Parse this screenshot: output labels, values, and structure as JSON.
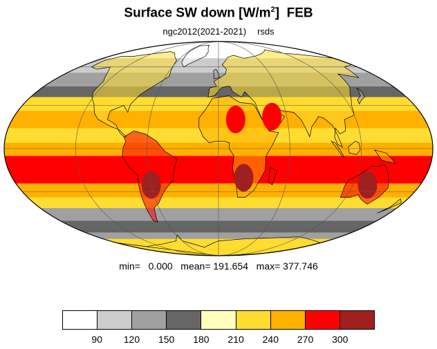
{
  "title": {
    "main": "Surface SW down [W/m",
    "sup": "2",
    "close": "]",
    "month": "FEB"
  },
  "subtitle": {
    "run": "ngc2012(2021-2021)",
    "variable": "rsds"
  },
  "stats": {
    "text": "min=   0.000   mean= 191.654   max= 377.746"
  },
  "colorbar": {
    "colors": [
      "#ffffff",
      "#cccccc",
      "#a0a0a0",
      "#666666",
      "#ffffc0",
      "#ffdc30",
      "#ffb000",
      "#ff0000",
      "#a02020"
    ],
    "labels": [
      "90",
      "120",
      "150",
      "180",
      "210",
      "240",
      "270",
      "300"
    ]
  },
  "map": {
    "projection": "mollweide",
    "variable_units": "W/m2",
    "ocean_bands": [
      {
        "lat_from": 90,
        "lat_to": 68,
        "value_color": "#ffffff"
      },
      {
        "lat_from": 68,
        "lat_to": 55,
        "value_color": "#cccccc"
      },
      {
        "lat_from": 55,
        "lat_to": 44,
        "value_color": "#a0a0a0"
      },
      {
        "lat_from": 44,
        "lat_to": 36,
        "value_color": "#666666"
      },
      {
        "lat_from": 36,
        "lat_to": 26,
        "value_color": "#ffdc30"
      },
      {
        "lat_from": 26,
        "lat_to": 14,
        "value_color": "#ffb000"
      },
      {
        "lat_from": 14,
        "lat_to": 4,
        "value_color": "#ffdc30"
      },
      {
        "lat_from": 4,
        "lat_to": -5,
        "value_color": "#ffb000"
      },
      {
        "lat_from": -5,
        "lat_to": -24,
        "value_color": "#ff0000"
      },
      {
        "lat_from": -24,
        "lat_to": -34,
        "value_color": "#ffb000"
      },
      {
        "lat_from": -34,
        "lat_to": -42,
        "value_color": "#ffdc30"
      },
      {
        "lat_from": -42,
        "lat_to": -52,
        "value_color": "#a0a0a0"
      },
      {
        "lat_from": -52,
        "lat_to": -62,
        "value_color": "#666666"
      },
      {
        "lat_from": -62,
        "lat_to": -68,
        "value_color": "#a0a0a0"
      },
      {
        "lat_from": -68,
        "lat_to": -90,
        "value_color": "#ffdc30"
      }
    ],
    "hotspots": [
      {
        "name": "south-america-interior",
        "lon": -60,
        "lat": -25,
        "color": "#a02020"
      },
      {
        "name": "southern-africa",
        "lon": 22,
        "lat": -20,
        "color": "#a02020"
      },
      {
        "name": "australia",
        "lon": 133,
        "lat": -25,
        "color": "#a02020"
      },
      {
        "name": "sahara",
        "lon": 15,
        "lat": 20,
        "color": "#ff0000"
      },
      {
        "name": "arabia",
        "lon": 47,
        "lat": 22,
        "color": "#ff0000"
      }
    ]
  }
}
